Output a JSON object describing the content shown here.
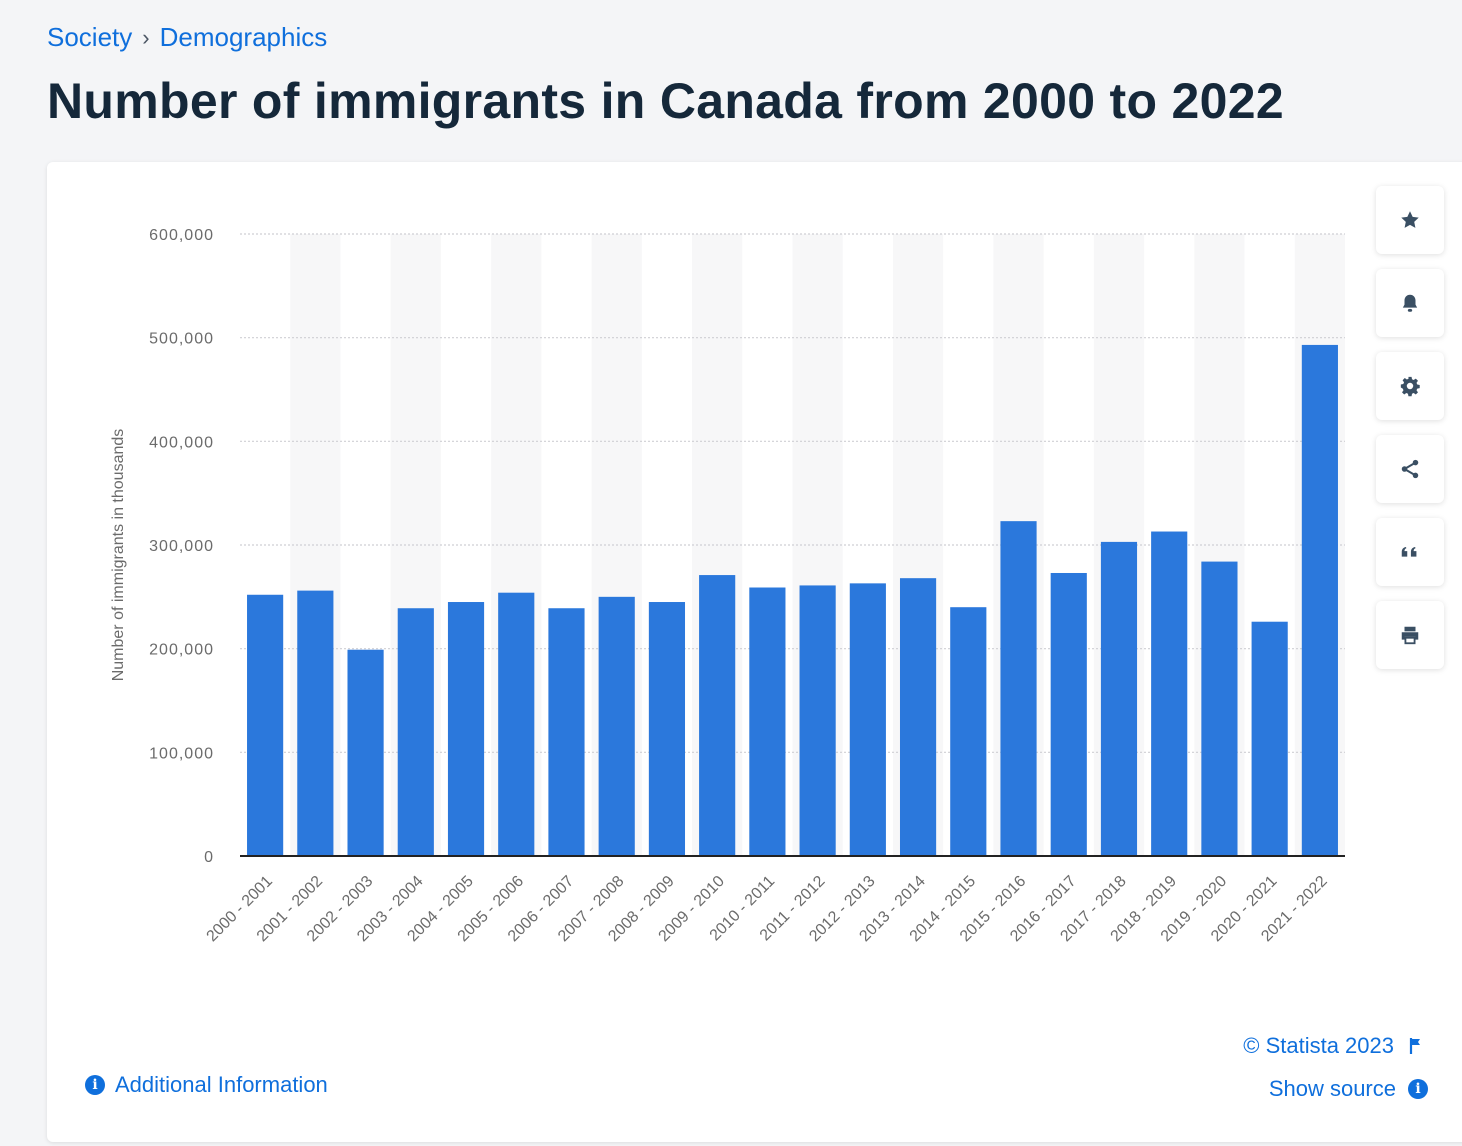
{
  "breadcrumb": {
    "items": [
      "Society",
      "Demographics"
    ],
    "separator": "›"
  },
  "page_title": "Number of immigrants in Canada from 2000 to 2022",
  "tools": [
    {
      "name": "favorite",
      "icon": "star-icon"
    },
    {
      "name": "notification",
      "icon": "bell-icon"
    },
    {
      "name": "settings",
      "icon": "gear-icon"
    },
    {
      "name": "share",
      "icon": "share-icon"
    },
    {
      "name": "cite",
      "icon": "quote-icon"
    },
    {
      "name": "print",
      "icon": "printer-icon"
    }
  ],
  "footer": {
    "additional_info": "Additional Information",
    "copyright": "© Statista 2023",
    "show_source": "Show source"
  },
  "colors": {
    "bar": "#2b78dc",
    "accent": "#0f6fdc",
    "title": "#15283a",
    "band": "#f7f7f8"
  },
  "chart_data": {
    "type": "bar",
    "ylabel": "Number of immigrants in thousands",
    "xlabel": "",
    "ylim": [
      0,
      600000
    ],
    "yticks": [
      0,
      100000,
      200000,
      300000,
      400000,
      500000,
      600000
    ],
    "ytick_labels": [
      "0",
      "100,000",
      "200,000",
      "300,000",
      "400,000",
      "500,000",
      "600,000"
    ],
    "grid": true,
    "categories": [
      "2000 - 2001",
      "2001 - 2002",
      "2002 - 2003",
      "2003 - 2004",
      "2004 - 2005",
      "2005 - 2006",
      "2006 - 2007",
      "2007 - 2008",
      "2008 - 2009",
      "2009 - 2010",
      "2010 - 2011",
      "2011 - 2012",
      "2012 - 2013",
      "2013 - 2014",
      "2014 - 2015",
      "2015 - 2016",
      "2016 - 2017",
      "2017 - 2018",
      "2018 - 2019",
      "2019 - 2020",
      "2020 - 2021",
      "2021 - 2022"
    ],
    "values": [
      252000,
      256000,
      199000,
      239000,
      245000,
      254000,
      239000,
      250000,
      245000,
      271000,
      259000,
      261000,
      263000,
      268000,
      240000,
      323000,
      273000,
      303000,
      313000,
      284000,
      226000,
      493000
    ]
  }
}
